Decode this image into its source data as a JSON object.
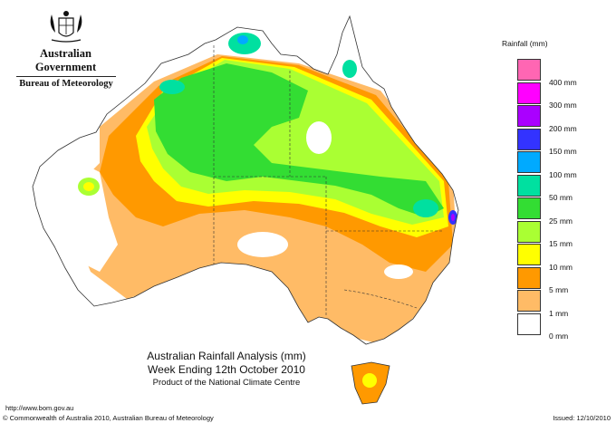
{
  "header": {
    "government": "Australian Government",
    "bureau": "Bureau of Meteorology"
  },
  "title": {
    "line1": "Australian Rainfall Analysis (mm)",
    "line2": "Week Ending 12th October 2010",
    "line3": "Product of the National Climate Centre"
  },
  "footer": {
    "url": "http://www.bom.gov.au",
    "copyright": "© Commonwealth of Australia 2010, Australian Bureau of Meteorology",
    "issued": "Issued: 12/10/2010"
  },
  "legend": {
    "title": "Rainfall (mm)",
    "items": [
      {
        "label": "",
        "color": "#ff66b3"
      },
      {
        "label": "400 mm",
        "color": "#ff00ff"
      },
      {
        "label": "300 mm",
        "color": "#aa00ff"
      },
      {
        "label": "200 mm",
        "color": "#3333ff"
      },
      {
        "label": "150 mm",
        "color": "#00aaff"
      },
      {
        "label": "100 mm",
        "color": "#00e0a0"
      },
      {
        "label": "50 mm",
        "color": "#33dd33"
      },
      {
        "label": "25 mm",
        "color": "#aaff33"
      },
      {
        "label": "15 mm",
        "color": "#ffff00"
      },
      {
        "label": "10 mm",
        "color": "#ff9900"
      },
      {
        "label": "5 mm",
        "color": "#ffbb66"
      },
      {
        "label": "1 mm",
        "color": "#ffffff"
      },
      {
        "label": "0 mm",
        "color": null
      }
    ]
  },
  "map": {
    "colors": {
      "none": "#ffffff",
      "mm1": "#ffbb66",
      "mm5": "#ff9900",
      "mm10": "#ffff00",
      "mm15": "#aaff33",
      "mm25": "#33dd33",
      "mm50": "#00e0a0",
      "mm100": "#00aaff",
      "mm150": "#3333ff",
      "mm200": "#aa00ff",
      "border": "#333333"
    }
  }
}
